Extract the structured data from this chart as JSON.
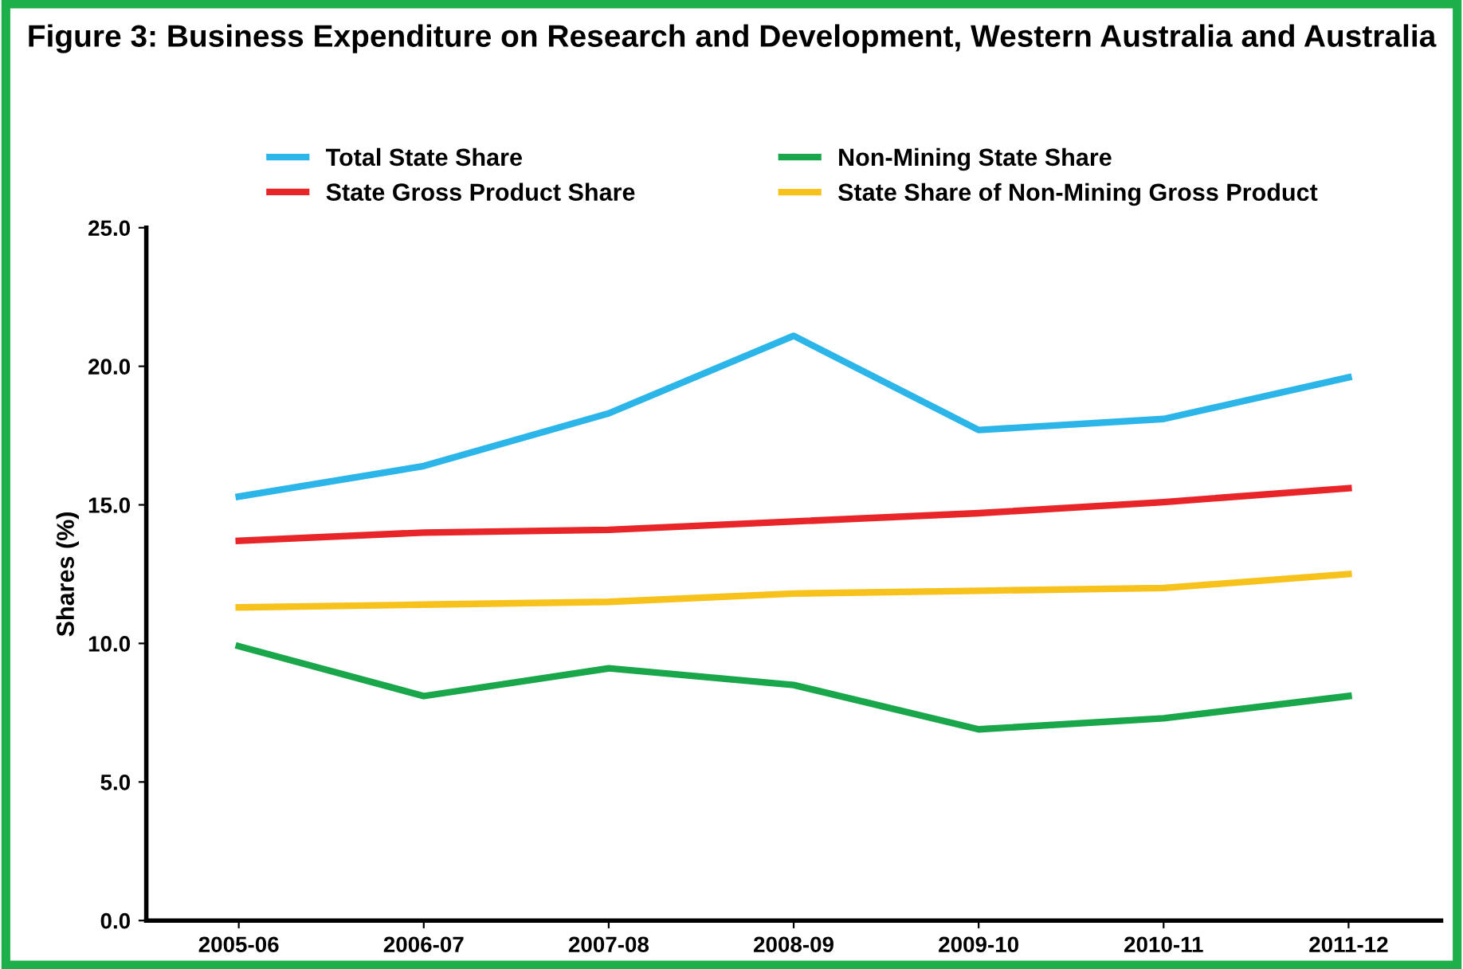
{
  "chart_data": {
    "type": "line",
    "title": "Figure 3: Business Expenditure on Research and Development, Western Australia and Australia",
    "ylabel": "Shares (%)",
    "categories": [
      "2005-06",
      "2006-07",
      "2007-08",
      "2008-09",
      "2009-10",
      "2010-11",
      "2011-12"
    ],
    "series": [
      {
        "name": "Total State Share",
        "color": "#2cb5e8",
        "values": [
          15.3,
          16.4,
          18.3,
          21.1,
          17.7,
          18.1,
          19.6
        ]
      },
      {
        "name": "Non-Mining State Share",
        "color": "#1aa64a",
        "values": [
          9.9,
          8.1,
          9.1,
          8.5,
          6.9,
          7.3,
          8.1
        ]
      },
      {
        "name": "State Gross Product Share",
        "color": "#e8262a",
        "values": [
          13.7,
          14.0,
          14.1,
          14.4,
          14.7,
          15.1,
          15.6
        ]
      },
      {
        "name": "State Share of Non-Mining Gross Product",
        "color": "#f8c21c",
        "values": [
          11.3,
          11.4,
          11.5,
          11.8,
          11.9,
          12.0,
          12.5
        ]
      }
    ],
    "ylim": [
      0,
      25
    ],
    "yticks": [
      {
        "value": 0,
        "label": "0.0"
      },
      {
        "value": 5,
        "label": "5.0"
      },
      {
        "value": 10,
        "label": "10.0"
      },
      {
        "value": 15,
        "label": "15.0"
      },
      {
        "value": 20,
        "label": "20.0"
      },
      {
        "value": 25,
        "label": "25.0"
      }
    ],
    "grid": false,
    "legend": "top",
    "marker": "none",
    "line_style": "solid"
  }
}
